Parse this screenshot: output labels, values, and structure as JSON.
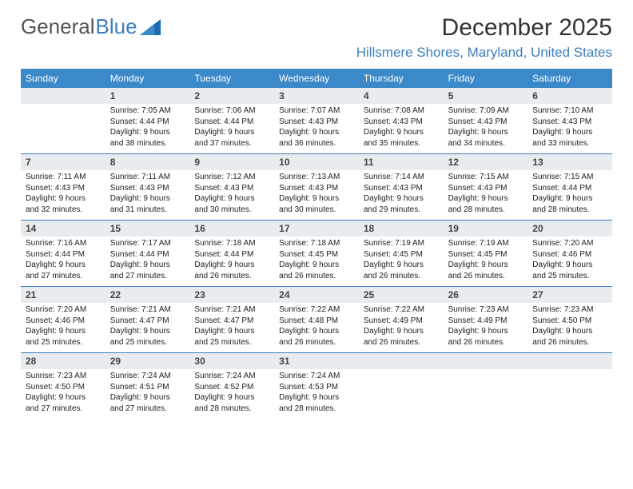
{
  "logo": {
    "text_gray": "General",
    "text_blue": "Blue"
  },
  "title": "December 2025",
  "subtitle": "Hillsmere Shores, Maryland, United States",
  "colors": {
    "header_bg": "#3b89c9",
    "accent": "#3b7fbf",
    "daynum_bg": "#e8ecef"
  },
  "day_headers": [
    "Sunday",
    "Monday",
    "Tuesday",
    "Wednesday",
    "Thursday",
    "Friday",
    "Saturday"
  ],
  "weeks": [
    [
      {
        "n": "",
        "sr": "",
        "ss": "",
        "dl1": "",
        "dl2": ""
      },
      {
        "n": "1",
        "sr": "Sunrise: 7:05 AM",
        "ss": "Sunset: 4:44 PM",
        "dl1": "Daylight: 9 hours",
        "dl2": "and 38 minutes."
      },
      {
        "n": "2",
        "sr": "Sunrise: 7:06 AM",
        "ss": "Sunset: 4:44 PM",
        "dl1": "Daylight: 9 hours",
        "dl2": "and 37 minutes."
      },
      {
        "n": "3",
        "sr": "Sunrise: 7:07 AM",
        "ss": "Sunset: 4:43 PM",
        "dl1": "Daylight: 9 hours",
        "dl2": "and 36 minutes."
      },
      {
        "n": "4",
        "sr": "Sunrise: 7:08 AM",
        "ss": "Sunset: 4:43 PM",
        "dl1": "Daylight: 9 hours",
        "dl2": "and 35 minutes."
      },
      {
        "n": "5",
        "sr": "Sunrise: 7:09 AM",
        "ss": "Sunset: 4:43 PM",
        "dl1": "Daylight: 9 hours",
        "dl2": "and 34 minutes."
      },
      {
        "n": "6",
        "sr": "Sunrise: 7:10 AM",
        "ss": "Sunset: 4:43 PM",
        "dl1": "Daylight: 9 hours",
        "dl2": "and 33 minutes."
      }
    ],
    [
      {
        "n": "7",
        "sr": "Sunrise: 7:11 AM",
        "ss": "Sunset: 4:43 PM",
        "dl1": "Daylight: 9 hours",
        "dl2": "and 32 minutes."
      },
      {
        "n": "8",
        "sr": "Sunrise: 7:11 AM",
        "ss": "Sunset: 4:43 PM",
        "dl1": "Daylight: 9 hours",
        "dl2": "and 31 minutes."
      },
      {
        "n": "9",
        "sr": "Sunrise: 7:12 AM",
        "ss": "Sunset: 4:43 PM",
        "dl1": "Daylight: 9 hours",
        "dl2": "and 30 minutes."
      },
      {
        "n": "10",
        "sr": "Sunrise: 7:13 AM",
        "ss": "Sunset: 4:43 PM",
        "dl1": "Daylight: 9 hours",
        "dl2": "and 30 minutes."
      },
      {
        "n": "11",
        "sr": "Sunrise: 7:14 AM",
        "ss": "Sunset: 4:43 PM",
        "dl1": "Daylight: 9 hours",
        "dl2": "and 29 minutes."
      },
      {
        "n": "12",
        "sr": "Sunrise: 7:15 AM",
        "ss": "Sunset: 4:43 PM",
        "dl1": "Daylight: 9 hours",
        "dl2": "and 28 minutes."
      },
      {
        "n": "13",
        "sr": "Sunrise: 7:15 AM",
        "ss": "Sunset: 4:44 PM",
        "dl1": "Daylight: 9 hours",
        "dl2": "and 28 minutes."
      }
    ],
    [
      {
        "n": "14",
        "sr": "Sunrise: 7:16 AM",
        "ss": "Sunset: 4:44 PM",
        "dl1": "Daylight: 9 hours",
        "dl2": "and 27 minutes."
      },
      {
        "n": "15",
        "sr": "Sunrise: 7:17 AM",
        "ss": "Sunset: 4:44 PM",
        "dl1": "Daylight: 9 hours",
        "dl2": "and 27 minutes."
      },
      {
        "n": "16",
        "sr": "Sunrise: 7:18 AM",
        "ss": "Sunset: 4:44 PM",
        "dl1": "Daylight: 9 hours",
        "dl2": "and 26 minutes."
      },
      {
        "n": "17",
        "sr": "Sunrise: 7:18 AM",
        "ss": "Sunset: 4:45 PM",
        "dl1": "Daylight: 9 hours",
        "dl2": "and 26 minutes."
      },
      {
        "n": "18",
        "sr": "Sunrise: 7:19 AM",
        "ss": "Sunset: 4:45 PM",
        "dl1": "Daylight: 9 hours",
        "dl2": "and 26 minutes."
      },
      {
        "n": "19",
        "sr": "Sunrise: 7:19 AM",
        "ss": "Sunset: 4:45 PM",
        "dl1": "Daylight: 9 hours",
        "dl2": "and 26 minutes."
      },
      {
        "n": "20",
        "sr": "Sunrise: 7:20 AM",
        "ss": "Sunset: 4:46 PM",
        "dl1": "Daylight: 9 hours",
        "dl2": "and 25 minutes."
      }
    ],
    [
      {
        "n": "21",
        "sr": "Sunrise: 7:20 AM",
        "ss": "Sunset: 4:46 PM",
        "dl1": "Daylight: 9 hours",
        "dl2": "and 25 minutes."
      },
      {
        "n": "22",
        "sr": "Sunrise: 7:21 AM",
        "ss": "Sunset: 4:47 PM",
        "dl1": "Daylight: 9 hours",
        "dl2": "and 25 minutes."
      },
      {
        "n": "23",
        "sr": "Sunrise: 7:21 AM",
        "ss": "Sunset: 4:47 PM",
        "dl1": "Daylight: 9 hours",
        "dl2": "and 25 minutes."
      },
      {
        "n": "24",
        "sr": "Sunrise: 7:22 AM",
        "ss": "Sunset: 4:48 PM",
        "dl1": "Daylight: 9 hours",
        "dl2": "and 26 minutes."
      },
      {
        "n": "25",
        "sr": "Sunrise: 7:22 AM",
        "ss": "Sunset: 4:49 PM",
        "dl1": "Daylight: 9 hours",
        "dl2": "and 26 minutes."
      },
      {
        "n": "26",
        "sr": "Sunrise: 7:23 AM",
        "ss": "Sunset: 4:49 PM",
        "dl1": "Daylight: 9 hours",
        "dl2": "and 26 minutes."
      },
      {
        "n": "27",
        "sr": "Sunrise: 7:23 AM",
        "ss": "Sunset: 4:50 PM",
        "dl1": "Daylight: 9 hours",
        "dl2": "and 26 minutes."
      }
    ],
    [
      {
        "n": "28",
        "sr": "Sunrise: 7:23 AM",
        "ss": "Sunset: 4:50 PM",
        "dl1": "Daylight: 9 hours",
        "dl2": "and 27 minutes."
      },
      {
        "n": "29",
        "sr": "Sunrise: 7:24 AM",
        "ss": "Sunset: 4:51 PM",
        "dl1": "Daylight: 9 hours",
        "dl2": "and 27 minutes."
      },
      {
        "n": "30",
        "sr": "Sunrise: 7:24 AM",
        "ss": "Sunset: 4:52 PM",
        "dl1": "Daylight: 9 hours",
        "dl2": "and 28 minutes."
      },
      {
        "n": "31",
        "sr": "Sunrise: 7:24 AM",
        "ss": "Sunset: 4:53 PM",
        "dl1": "Daylight: 9 hours",
        "dl2": "and 28 minutes."
      },
      {
        "n": "",
        "sr": "",
        "ss": "",
        "dl1": "",
        "dl2": ""
      },
      {
        "n": "",
        "sr": "",
        "ss": "",
        "dl1": "",
        "dl2": ""
      },
      {
        "n": "",
        "sr": "",
        "ss": "",
        "dl1": "",
        "dl2": ""
      }
    ]
  ]
}
